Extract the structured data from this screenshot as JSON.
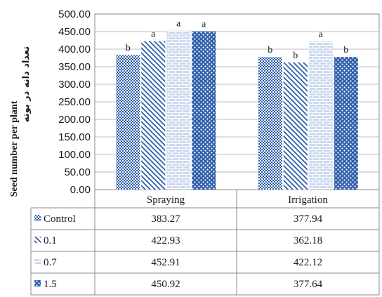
{
  "chart_data": {
    "type": "bar",
    "title": "",
    "ylabel": "Seed number per plant",
    "ylabel_fa": "تعداد دانه در بوته",
    "ylim": [
      0,
      500
    ],
    "yticks": [
      "0.00",
      "50.00",
      "100.00",
      "150.00",
      "200.00",
      "250.00",
      "300.00",
      "350.00",
      "400.00",
      "450.00",
      "500.00"
    ],
    "categories": [
      "Spraying",
      "Irrigation"
    ],
    "grid": "horizontal",
    "legend": "data-table-below",
    "series": [
      {
        "name": "Control",
        "values": [
          383.27,
          377.94
        ],
        "labels": [
          "383.27",
          "377.94"
        ],
        "letters": [
          "b",
          "b"
        ],
        "pattern": "dots",
        "legend_glyph": "■"
      },
      {
        "name": "0.1",
        "values": [
          422.93,
          362.18
        ],
        "labels": [
          "422.93",
          "362.18"
        ],
        "letters": [
          "a",
          "b"
        ],
        "pattern": "diagonal",
        "legend_glyph": "↘"
      },
      {
        "name": "0.7",
        "values": [
          452.91,
          422.12
        ],
        "labels": [
          "452.91",
          "422.12"
        ],
        "letters": [
          "a",
          "a"
        ],
        "pattern": "brick",
        "legend_glyph": "⌿"
      },
      {
        "name": "1.5",
        "values": [
          450.92,
          377.64
        ],
        "labels": [
          "450.92",
          "377.64"
        ],
        "letters": [
          "a",
          "b"
        ],
        "pattern": "checker",
        "legend_glyph": "ꟺ"
      }
    ],
    "colors": {
      "bar": "#2f5eaa",
      "grid": "#bcbcbc",
      "border": "#888888"
    }
  }
}
